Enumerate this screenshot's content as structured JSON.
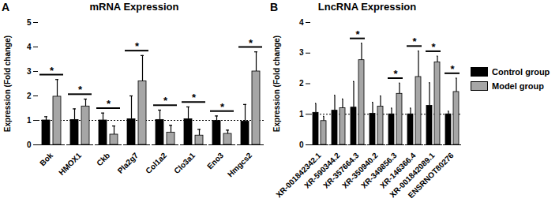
{
  "chart_data": [
    {
      "type": "bar",
      "panel": "A",
      "title": "mRNA Expression",
      "y_label": "Expression (Fold change)",
      "categories": [
        "Bok",
        "HMOX1",
        "Ckb",
        "Pla2g7",
        "Col1a2",
        "Clo3a1",
        "Eno3",
        "Hmgcs2"
      ],
      "series": [
        {
          "name": "Control group",
          "color": "#000000",
          "values": [
            1.0,
            1.02,
            1.0,
            1.05,
            1.02,
            1.05,
            0.98,
            0.95
          ],
          "errors": [
            0.15,
            0.45,
            0.3,
            0.95,
            0.4,
            0.5,
            0.2,
            0.7
          ]
        },
        {
          "name": "Model group",
          "color": "#a6a6a6",
          "values": [
            1.97,
            1.57,
            0.42,
            2.6,
            0.5,
            0.38,
            0.45,
            3.0
          ],
          "errors": [
            0.7,
            0.3,
            0.35,
            1.05,
            0.3,
            0.25,
            0.15,
            0.8
          ]
        }
      ],
      "significance": [
        "*",
        "*",
        "*",
        "*",
        "*",
        "*",
        "*",
        "*"
      ],
      "reference_line": 1,
      "ylim": [
        0,
        5
      ],
      "yticks": [
        0,
        1,
        2,
        3,
        4,
        5
      ]
    },
    {
      "type": "bar",
      "panel": "B",
      "title": "LncRNA Expression",
      "y_label": "Expression (Fold change)",
      "categories": [
        "XR-001842342.1",
        "XR-590344.2",
        "XR-357664.3",
        "XR-350940.2",
        "XR-349856.3",
        "XR-146366.4",
        "XR-001842089.1",
        "ENSRNOT80276"
      ],
      "series": [
        {
          "name": "Control group",
          "color": "#000000",
          "values": [
            1.05,
            1.12,
            1.22,
            1.02,
            1.0,
            1.0,
            1.28,
            1.0
          ],
          "errors": [
            0.3,
            0.5,
            0.85,
            0.37,
            0.2,
            0.2,
            0.75,
            0.1
          ]
        },
        {
          "name": "Model group",
          "color": "#a6a6a6",
          "values": [
            0.78,
            1.2,
            2.77,
            1.25,
            1.67,
            2.22,
            2.7,
            1.73
          ],
          "errors": [
            0.15,
            0.3,
            0.55,
            0.35,
            0.35,
            0.85,
            0.2,
            0.45
          ]
        }
      ],
      "significance": [
        null,
        null,
        "*",
        null,
        "*",
        "*",
        "*",
        "*"
      ],
      "reference_line": 1,
      "ylim": [
        0,
        4
      ],
      "yticks": [
        0,
        1,
        2,
        3,
        4
      ],
      "legend": "right"
    }
  ]
}
